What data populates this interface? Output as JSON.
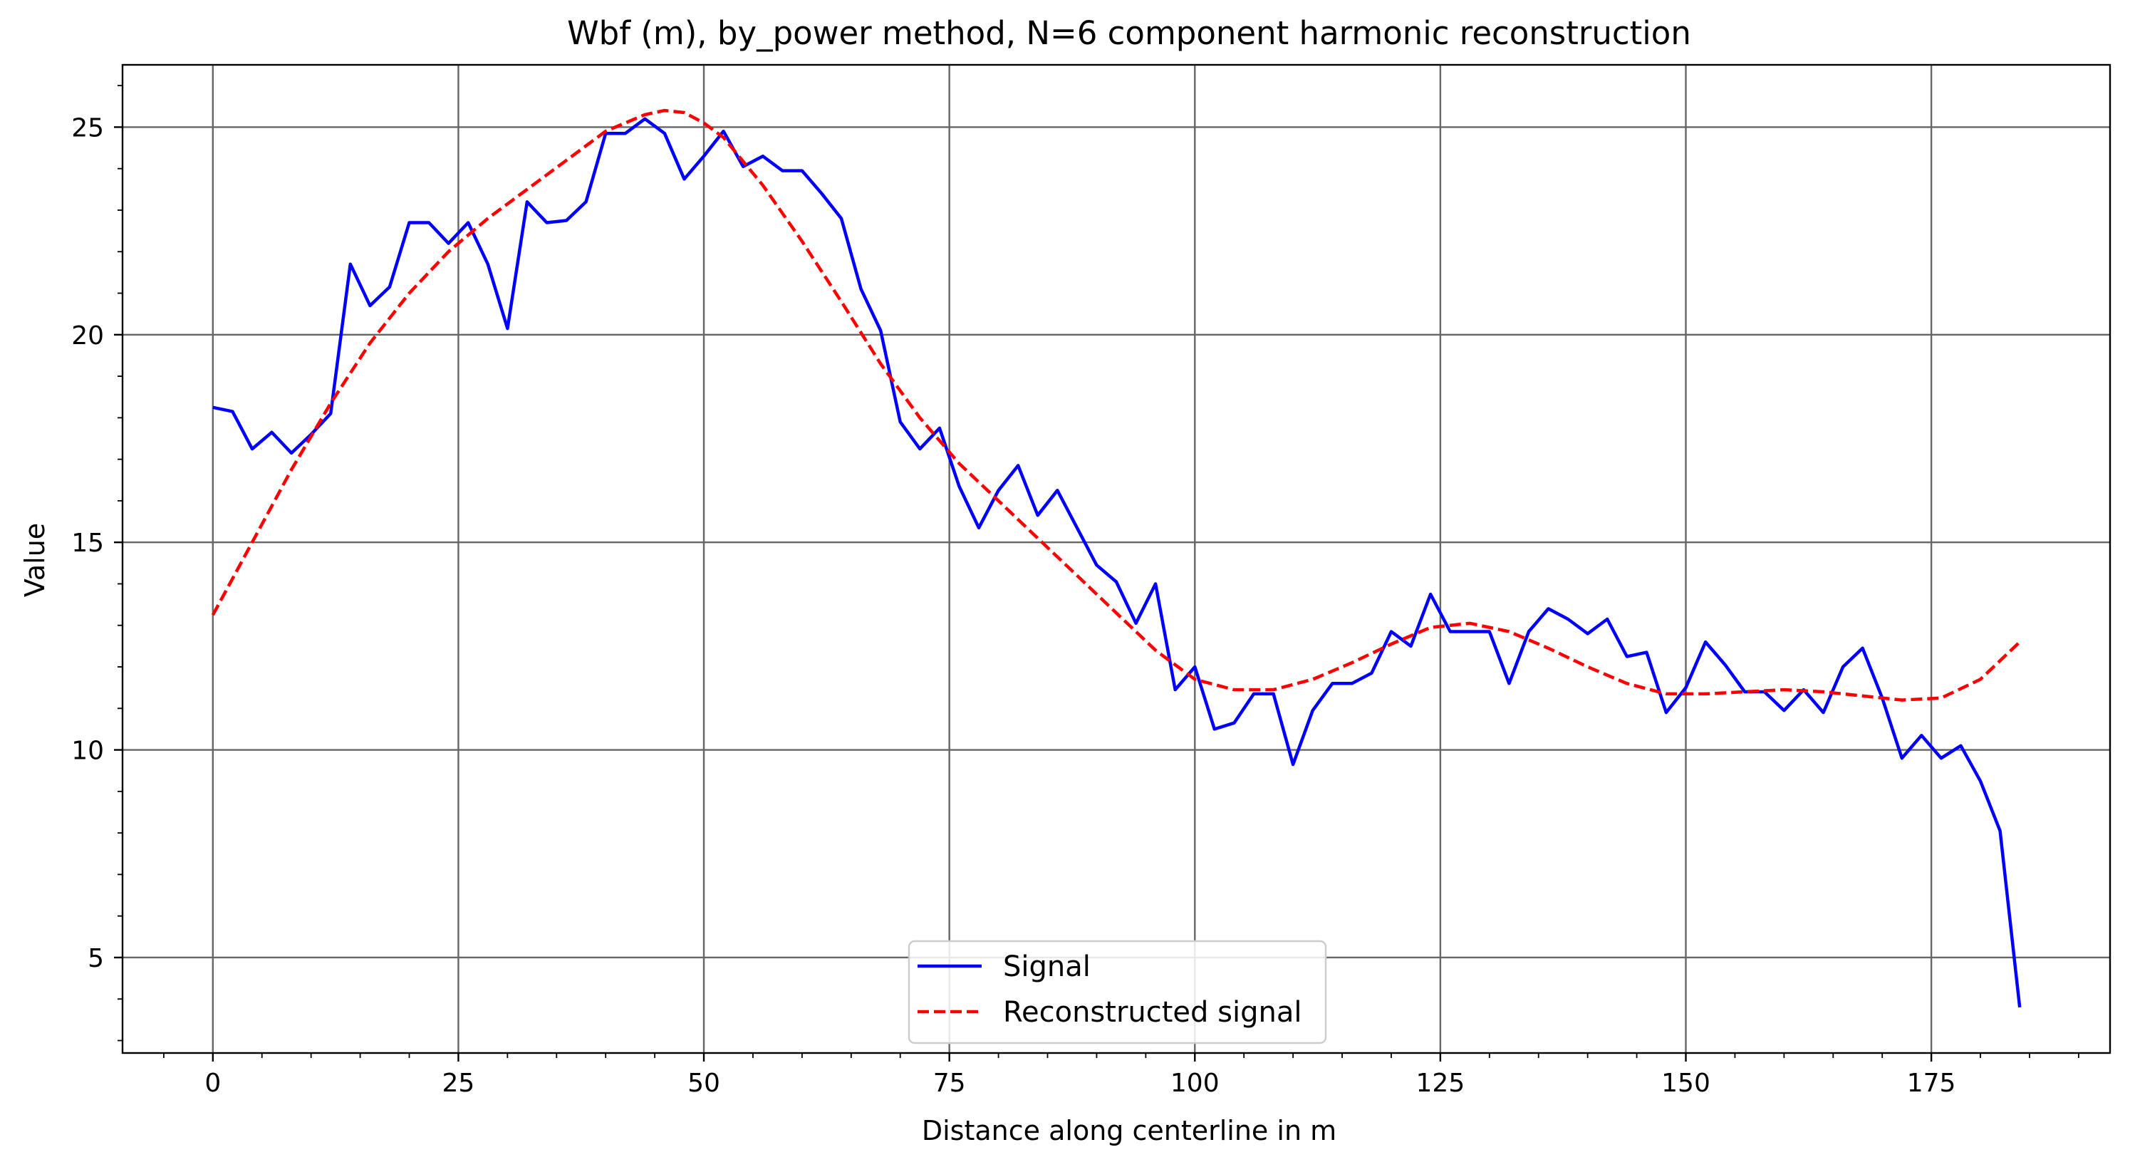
{
  "chart_data": {
    "type": "line",
    "title": "Wbf (m), by_power method, N=6 component harmonic reconstruction",
    "xlabel": "Distance along centerline in m",
    "ylabel": "Value",
    "xlim": [
      -9.2,
      193.2
    ],
    "ylim": [
      2.7,
      26.5
    ],
    "xticks": [
      0,
      25,
      50,
      75,
      100,
      125,
      150,
      175
    ],
    "yticks": [
      5,
      10,
      15,
      20,
      25
    ],
    "grid": true,
    "legend_position": "bottom-center",
    "series": [
      {
        "name": "Signal",
        "color": "#0000ff",
        "style": "solid",
        "x": [
          0,
          2,
          4,
          6,
          8,
          10,
          12,
          14,
          16,
          18,
          20,
          22,
          24,
          26,
          28,
          30,
          32,
          34,
          36,
          38,
          40,
          42,
          44,
          46,
          48,
          50,
          52,
          54,
          56,
          58,
          60,
          62,
          64,
          66,
          68,
          70,
          72,
          74,
          76,
          78,
          80,
          82,
          84,
          86,
          88,
          90,
          92,
          94,
          96,
          98,
          100,
          102,
          104,
          106,
          108,
          110,
          112,
          114,
          116,
          118,
          120,
          122,
          124,
          126,
          128,
          130,
          132,
          134,
          136,
          138,
          140,
          142,
          144,
          146,
          148,
          150,
          152,
          154,
          156,
          158,
          160,
          162,
          164,
          166,
          168,
          170,
          172,
          174,
          176,
          178,
          180,
          182,
          184
        ],
        "y": [
          18.25,
          18.15,
          17.25,
          17.65,
          17.15,
          17.6,
          18.1,
          21.7,
          20.7,
          21.15,
          22.7,
          22.7,
          22.2,
          22.7,
          21.7,
          20.15,
          23.2,
          22.7,
          22.75,
          23.2,
          24.85,
          24.85,
          25.2,
          24.85,
          23.75,
          24.3,
          24.9,
          24.05,
          24.3,
          23.95,
          23.95,
          23.4,
          22.8,
          21.1,
          20.1,
          17.9,
          17.25,
          17.75,
          16.35,
          15.35,
          16.25,
          16.85,
          15.65,
          16.25,
          15.35,
          14.45,
          14.05,
          13.05,
          14.0,
          11.45,
          12.0,
          10.5,
          10.65,
          11.35,
          11.35,
          9.65,
          10.95,
          11.6,
          11.6,
          11.85,
          12.85,
          12.5,
          13.75,
          12.85,
          12.85,
          12.85,
          11.6,
          12.85,
          13.4,
          13.15,
          12.8,
          13.15,
          12.25,
          12.35,
          10.9,
          11.5,
          12.6,
          12.05,
          11.4,
          11.4,
          10.95,
          11.45,
          10.9,
          12.0,
          12.45,
          11.25,
          9.8,
          10.35,
          9.8,
          10.1,
          9.25,
          8.05,
          3.8
        ]
      },
      {
        "name": "Reconstructed signal",
        "color": "#ff0000",
        "style": "dashed",
        "x": [
          0,
          4,
          8,
          12,
          16,
          20,
          24,
          28,
          32,
          36,
          40,
          44,
          46,
          48,
          50,
          52,
          56,
          60,
          64,
          68,
          72,
          76,
          80,
          84,
          88,
          92,
          96,
          100,
          104,
          108,
          112,
          116,
          120,
          124,
          128,
          132,
          136,
          140,
          144,
          148,
          152,
          156,
          160,
          164,
          168,
          172,
          176,
          180,
          184
        ],
        "y": [
          13.25,
          15.0,
          16.75,
          18.35,
          19.8,
          21.0,
          22.0,
          22.8,
          23.5,
          24.2,
          24.9,
          25.3,
          25.4,
          25.35,
          25.1,
          24.75,
          23.6,
          22.25,
          20.8,
          19.3,
          18.0,
          16.9,
          16.0,
          15.1,
          14.2,
          13.3,
          12.4,
          11.7,
          11.45,
          11.45,
          11.7,
          12.1,
          12.55,
          12.95,
          13.05,
          12.85,
          12.45,
          12.0,
          11.6,
          11.35,
          11.35,
          11.4,
          11.45,
          11.4,
          11.3,
          11.2,
          11.25,
          11.7,
          12.6
        ]
      }
    ]
  }
}
